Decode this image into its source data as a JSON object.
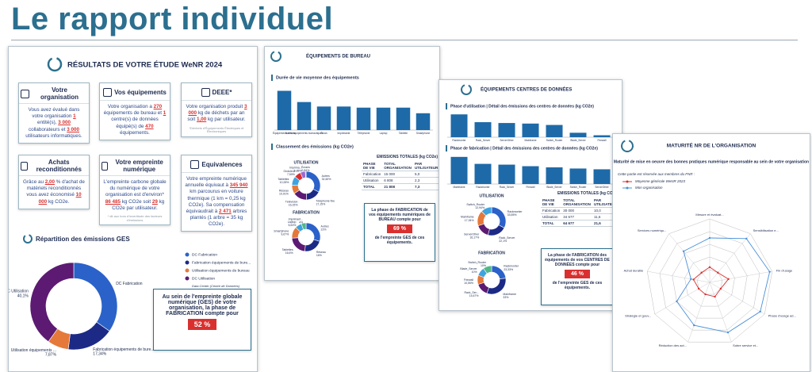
{
  "header": {
    "title": "Le rapport individuel"
  },
  "summary": {
    "title": "RÉSULTATS DE VOTRE ÉTUDE WeNR 2024",
    "cards": [
      {
        "title": "Votre organisation",
        "parts": [
          "Vous avez évalué dans votre organisation ",
          "1",
          " entité(s), ",
          "3 000",
          " collaborateurs et ",
          "3 000",
          " utilisateurs informatiques."
        ]
      },
      {
        "title": "Vos équipements",
        "parts": [
          "Votre organisation a ",
          "270",
          " équipements de bureau et ",
          "1",
          " centre(s) de données équipé(s) de ",
          "470",
          " équipements."
        ]
      },
      {
        "title": "DEEE*",
        "parts": [
          "Votre organisation produit ",
          "3 000",
          " kg de déchets par an soit ",
          "1,00",
          " kg par utilisateur."
        ],
        "note": "*Déchets d'Équipements Électriques et Électroniques"
      },
      {
        "title": "Achats reconditionnés",
        "parts": [
          "Grâce au ",
          "2,00",
          " % d'achat de matériels reconditionnés vous avez économisé ",
          "10 000",
          " kg CO2e."
        ]
      },
      {
        "title": "Votre empreinte numérique",
        "parts": [
          "L'empreinte carbone globale du numérique de votre organisation est d'environ* ",
          "86 485",
          " kg CO2e soit ",
          "29",
          " kg CO2e par utilisateur."
        ],
        "note": "* dit aux hors d'incertitude des facteurs d'émissions"
      },
      {
        "title": "Equivalences",
        "parts": [
          "Votre empreinte numérique annuelle équivaut à ",
          "345 940",
          " km parcourus en voiture thermique (1 km = 0,25 kg CO2e). Sa compensation équivaudrait à ",
          "2 471",
          " arbres plantés (1 arbre = 35 kg CO2e)."
        ]
      }
    ],
    "ghg": {
      "title": "Répartition des émissions GES",
      "names": [
        "DC Fabrication",
        "Fabrication équipements de bure...",
        "Utilisation équipements de bureau",
        "DC Utilisation"
      ],
      "slice_names": [
        "DC Fabrication",
        "Fabrication équipements de bure...",
        "Utilisation équipements ...",
        "DC Utilisation"
      ],
      "values": [
        34.69,
        17.34,
        7.87,
        40.1
      ],
      "value_labels": [
        null,
        "17,34%",
        "7,87%",
        "40,1%"
      ],
      "colors": [
        "#2b62c9",
        "#1c2a86",
        "#e5793a",
        "#5c1a72"
      ],
      "legend_note": "Data Center (Centre de Données)"
    },
    "callout": {
      "text": "Au sein de l'empreinte globale numérique (GES) de votre organisation, la phase de FABRICATION compte pour",
      "value": "52 %"
    }
  },
  "office": {
    "title": "ÉQUIPEMENTS DE BUREAU",
    "lifespan": {
      "title": "Durée de vie moyenne des équipements",
      "categories": [
        "Équipements réseau",
        "Autres équipements bureautiques",
        "Écran",
        "Imprimante",
        "Téléphonie",
        "Laptop",
        "Tablette",
        "Smartphone"
      ],
      "values": [
        7,
        5,
        4.2,
        4.2,
        4,
        4,
        4,
        3
      ],
      "color": "#1e6aa8"
    },
    "ranking_title": "Classement des émissions (kg CO2e)",
    "usage": {
      "title": "UTILISATION",
      "names": [
        "Autres",
        "Téléphonie fixe",
        "Télévision",
        "Réseau",
        "Tablettes",
        "Onduleur",
        "Imprima...",
        "Écrans"
      ],
      "values": [
        32.6,
        17.15,
        16.15,
        10.01,
        10.28,
        7.59,
        5.88,
        0.84
      ],
      "value_labels": [
        "32,60%",
        "17,15%",
        "16,15%",
        "10,01%",
        "10,28%",
        "7,59%",
        "5,88%",
        "0,84%"
      ],
      "colors": [
        "#2b62c9",
        "#1c2a86",
        "#5c1a72",
        "#e5793a",
        "#3fa3e0",
        "#d9302f",
        "#9b6ad1",
        "#52b788"
      ]
    },
    "manufacturing": {
      "title": "FABRICATION",
      "names": [
        "Autres",
        "Réseau",
        "Tablettes",
        "Smartphone",
        "Laptop",
        "Imprimant..."
      ],
      "values": [
        22,
        16,
        16.6,
        9.67,
        5.63,
        4
      ],
      "value_labels": [
        "22%",
        "16%",
        "16,6%",
        "9,67%",
        "5,63%",
        "4%"
      ],
      "colors": [
        "#2b62c9",
        "#1c2a86",
        "#5c1a72",
        "#e5793a",
        "#3fa3e0",
        "#52b788"
      ]
    },
    "table": {
      "title": "EMISSIONS TOTALES (kg CO2e)",
      "headers": [
        "PHASE DE VIE",
        "TOTAL ORGANISATION",
        "PAR UTILISATEUR"
      ],
      "rows": [
        [
          "Fabrication",
          "15 000",
          "5,0"
        ],
        [
          "Utilisation",
          "6 808",
          "2,3"
        ],
        [
          "TOTAL",
          "21 808",
          "7,3"
        ]
      ]
    },
    "callout": {
      "text": "La phase de FABRICATION de vos équipements numériques de BUREAU compte pour",
      "value": "69 %",
      "after": "de l'empreinte GES de ces équipements."
    }
  },
  "datacenter": {
    "title": "ÉQUIPEMENTS CENTRES DE DONNÉES",
    "usage_bars": {
      "title": "Phase d'utilisation | Détail des émissions des centres de données (kg CO2e)",
      "categories": [
        "Rackmonter",
        "Rack_Server",
        "ServerOther",
        "Mainframe",
        "Switch_Router",
        "Blade_Server",
        "Firewall"
      ],
      "values": [
        8.2,
        5.4,
        5.1,
        4.9,
        4.4,
        1.6,
        0.7
      ],
      "color": "#1e6aa8"
    },
    "manufacturing_bars": {
      "title": "Phase de fabrication | Détail des émissions des centres de données (kg CO2e)",
      "categories": [
        "Mainframe",
        "Rackmonter",
        "Rack_Server",
        "Firewall",
        "Blade_Server",
        "Switch_Router",
        "ServerOther"
      ],
      "values": [
        7,
        5.2,
        5,
        4.6,
        4.3,
        4,
        3.8
      ],
      "color": "#1e6aa8"
    },
    "usage": {
      "title": "UTILISATION",
      "names": [
        "Rackmonter",
        "Rack_Server",
        "ServerOther",
        "Mainframe",
        "Switch_Router"
      ],
      "values": [
        33.55,
        22.1,
        16.17,
        17.94,
        12.94
      ],
      "value_labels": [
        "33,55%",
        "22,1%",
        "16,17%",
        "17,94%",
        "12,94%"
      ],
      "colors": [
        "#2b62c9",
        "#1c2a86",
        "#5c1a72",
        "#e5793a",
        "#3fa3e0"
      ]
    },
    "manufacturing": {
      "title": "FABRICATION",
      "names": [
        "Rackmonter",
        "Mainframe",
        "Rack_Ser...",
        "Firewall",
        "Blade_Server",
        "Switch_Router"
      ],
      "values": [
        23.33,
        33,
        14.67,
        10.55,
        10,
        10
      ],
      "value_labels": [
        "23,33%",
        "33%",
        "14,67%",
        "10,55%",
        "10%",
        "10%"
      ],
      "colors": [
        "#2b62c9",
        "#1c2a86",
        "#5c1a72",
        "#e5793a",
        "#3fa3e0",
        "#52b788"
      ]
    },
    "table": {
      "title": "EMISSIONS TOTALES (kg CO2e)",
      "headers": [
        "PHASE DE VIE",
        "TOTAL ORGANISATION",
        "PAR UTILISATEUR"
      ],
      "rows": [
        [
          "Fabrication",
          "30 000",
          "10,0"
        ],
        [
          "Utilisation",
          "34 677",
          "11,6"
        ],
        [
          "TOTAL",
          "64 677",
          "21,6"
        ]
      ]
    },
    "callout": {
      "text": "La phase de FABRICATION des équipements de vos CENTRES DE DONNÉES compte pour",
      "value": "46 %",
      "after": "de l'empreinte GES de ces équipements."
    }
  },
  "maturity": {
    "title": "MATURITÉ NR DE L'ORGANISATION",
    "subtitle": "Maturité de mise en oeuvre des bonnes pratiques numérique responsable au sein de votre organisation",
    "note": "Cette partie est réservée aux membres du FNR :",
    "radar": {
      "axes": [
        "Mesure et évaluat...",
        "Sensibilisation e...",
        "Fin d'usage",
        "Phase d'usage ad...",
        "Sobre service et...",
        "Réduction des act...",
        "Stratégie et gouv...",
        "Achat durable",
        "Services numériqu..."
      ],
      "rlim": [
        0,
        5
      ],
      "series": [
        {
          "name": "Moyenne générale WeNR 2023",
          "color": "#d9302f",
          "values": [
            1.2,
            1,
            1.5,
            1,
            1.2,
            1,
            1,
            1.3,
            1
          ]
        },
        {
          "name": "Mon organisation",
          "color": "#4a90d9",
          "values": [
            3.5,
            4.5,
            4.8,
            4.6,
            4.2,
            3.6,
            3,
            1.5,
            3.2
          ]
        }
      ]
    }
  }
}
